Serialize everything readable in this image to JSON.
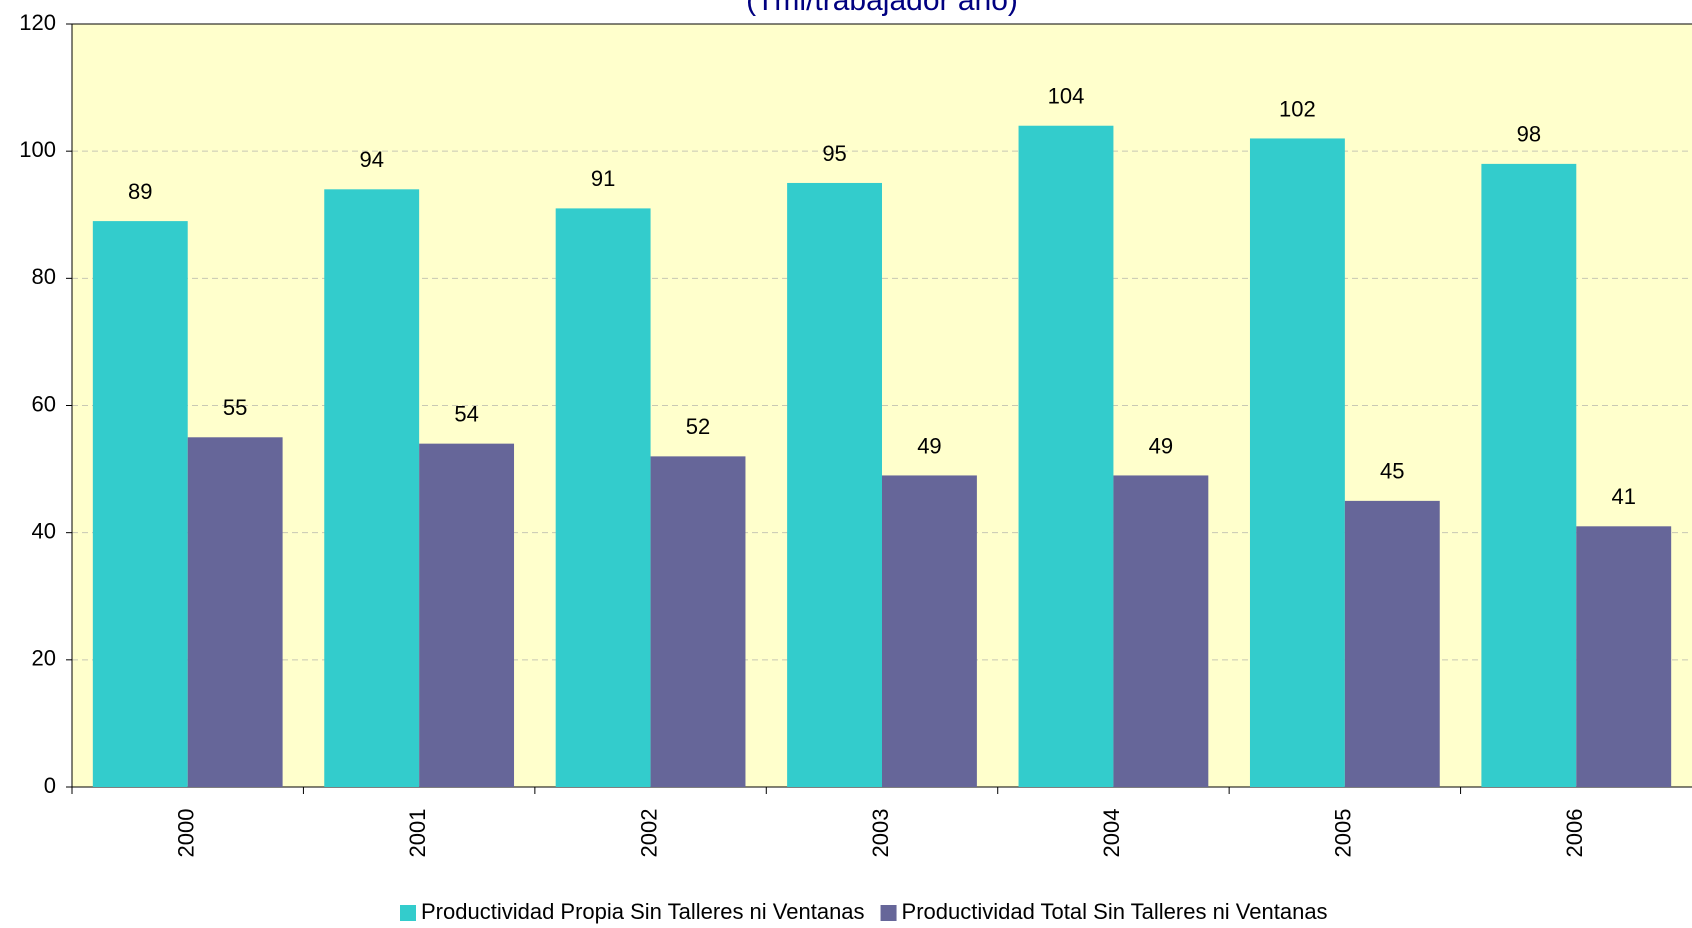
{
  "chart_data": {
    "type": "bar",
    "subtitle": "(Tml/trabajador año)",
    "categories": [
      "2000",
      "2001",
      "2002",
      "2003",
      "2004",
      "2005",
      "2006"
    ],
    "series": [
      {
        "name": "Productividad Propia Sin Talleres ni Ventanas",
        "color": "#33cccc",
        "values": [
          89,
          94,
          91,
          95,
          104,
          102,
          98
        ]
      },
      {
        "name": "Productividad Total Sin Talleres ni Ventanas",
        "color": "#666699",
        "values": [
          55,
          54,
          52,
          49,
          49,
          45,
          41
        ]
      }
    ],
    "ylim": [
      0,
      120
    ],
    "yticks": [
      0,
      20,
      40,
      60,
      80,
      100,
      120
    ],
    "grid": true,
    "legend": "bottom"
  }
}
